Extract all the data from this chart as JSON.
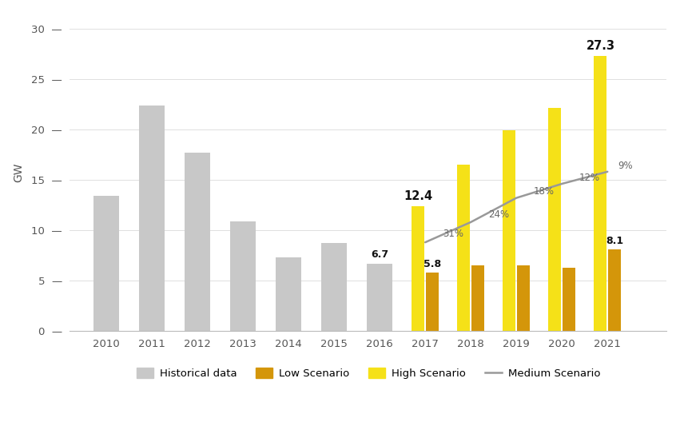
{
  "historical_years": [
    2010,
    2011,
    2012,
    2013,
    2014,
    2015,
    2016
  ],
  "historical_values": [
    13.4,
    22.4,
    17.7,
    10.9,
    7.3,
    8.7,
    6.7
  ],
  "forecast_years": [
    2017,
    2018,
    2019,
    2020,
    2021
  ],
  "low_values": [
    5.8,
    6.5,
    6.5,
    6.3,
    8.1
  ],
  "high_values": [
    12.4,
    16.5,
    19.9,
    22.1,
    27.3
  ],
  "medium_values": [
    8.8,
    10.8,
    13.2,
    14.6,
    15.8
  ],
  "label_2016": "6.7",
  "label_2017_low": "5.8",
  "label_2017_high": "12.4",
  "label_2021_low": "8.1",
  "label_2021_high": "27.3",
  "pct_labels": [
    "31%",
    "24%",
    "18%",
    "12%",
    "9%"
  ],
  "historical_color": "#c8c8c8",
  "low_color": "#d4960a",
  "high_color": "#f5e118",
  "medium_color": "#999999",
  "ylabel": "GW",
  "yticks": [
    0,
    5,
    10,
    15,
    20,
    25,
    30
  ],
  "ylim": [
    0,
    31.5
  ],
  "xlim_left": 2009.2,
  "xlim_right": 2022.3,
  "background_color": "#ffffff",
  "legend_labels": [
    "Historical data",
    "Low Scenario",
    "High Scenario",
    "Medium Scenario"
  ]
}
